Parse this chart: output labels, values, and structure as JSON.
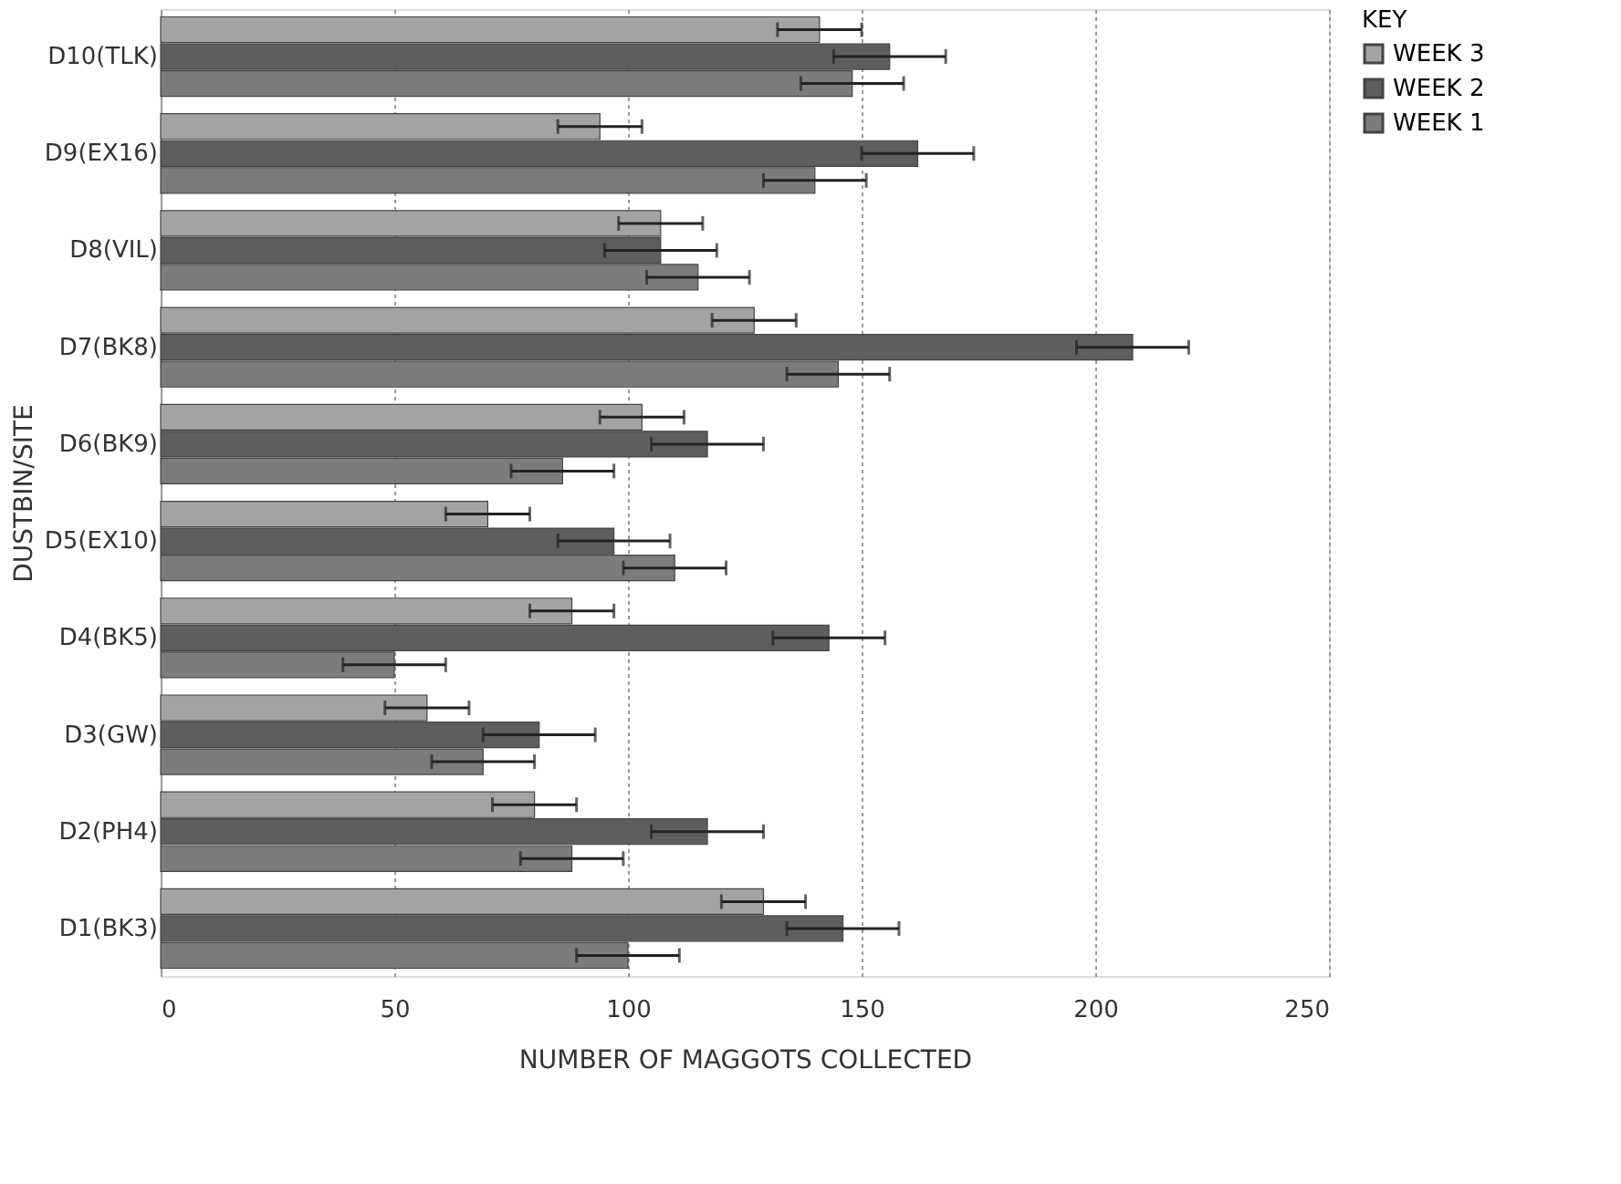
{
  "chart_data": {
    "type": "bar",
    "orientation": "horizontal",
    "xlabel": "NUMBER OF MAGGOTS COLLECTED",
    "ylabel": "DUSTBIN/SITE",
    "legend_title": "KEY",
    "categories": [
      "D10(TLK)",
      "D9(EX16)",
      "D8(VIL)",
      "D7(BK8)",
      "D6(BK9)",
      "D5(EX10)",
      "D4(BK5)",
      "D3(GW)",
      "D2(PH4)",
      "D1(BK3)"
    ],
    "series": [
      {
        "name": "WEEK 3",
        "color": "#a3a3a3",
        "values": [
          141,
          94,
          107,
          127,
          103,
          70,
          88,
          57,
          80,
          129
        ],
        "errors": [
          9,
          9,
          9,
          9,
          9,
          9,
          9,
          9,
          9,
          9
        ]
      },
      {
        "name": "WEEK 2",
        "color": "#5e5e5e",
        "values": [
          156,
          162,
          107,
          208,
          117,
          97,
          143,
          81,
          117,
          146
        ],
        "errors": [
          12,
          12,
          12,
          12,
          12,
          12,
          12,
          12,
          12,
          12
        ]
      },
      {
        "name": "WEEK 1",
        "color": "#7c7c7c",
        "values": [
          148,
          140,
          115,
          145,
          86,
          110,
          50,
          69,
          88,
          100
        ],
        "errors": [
          11,
          11,
          11,
          11,
          11,
          11,
          11,
          11,
          11,
          11
        ]
      }
    ],
    "xlim": [
      0,
      250
    ],
    "xticks": [
      0,
      50,
      100,
      150,
      200,
      250
    ],
    "grid": "x",
    "legend": "right"
  }
}
